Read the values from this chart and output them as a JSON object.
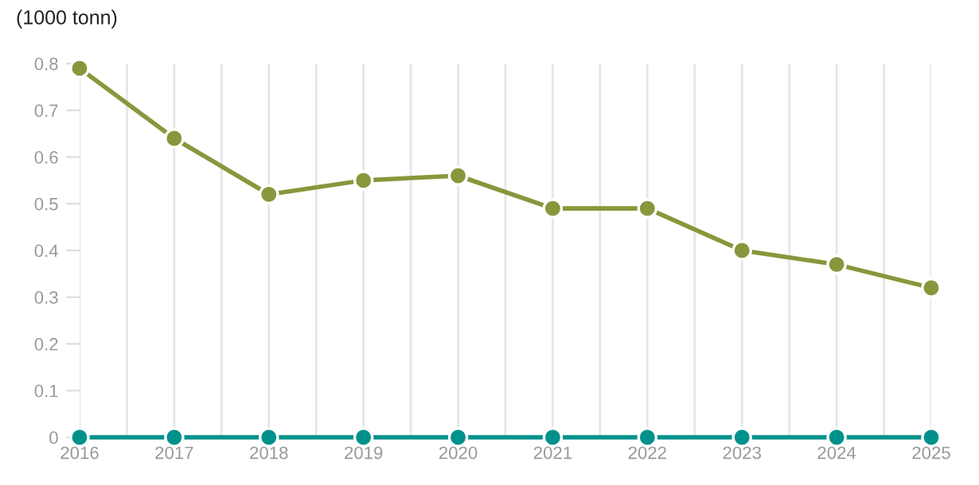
{
  "chart_data": {
    "type": "line",
    "ylabel": "(1000 tonn)",
    "x": [
      2016,
      2017,
      2018,
      2019,
      2020,
      2021,
      2022,
      2023,
      2024,
      2025
    ],
    "series": [
      {
        "color": "#8a963c",
        "values": [
          0.79,
          0.64,
          0.52,
          0.55,
          0.56,
          0.49,
          0.49,
          0.4,
          0.37,
          0.32
        ]
      },
      {
        "color": "#00918c",
        "values": [
          0,
          0,
          0,
          0,
          0,
          0,
          0,
          0,
          0,
          0
        ]
      }
    ],
    "xlim": [
      2016,
      2025
    ],
    "xticks": [
      2016,
      {
        "value": 2016.5,
        "label": null
      },
      2017,
      {
        "value": 2017.5,
        "label": null
      },
      2018,
      {
        "value": 2018.5,
        "label": null
      },
      2019,
      {
        "value": 2019.5,
        "label": null
      },
      2020,
      {
        "value": 2020.5,
        "label": null
      },
      2021,
      {
        "value": 2021.5,
        "label": null
      },
      2022,
      {
        "value": 2022.5,
        "label": null
      },
      2023,
      {
        "value": 2023.5,
        "label": null
      },
      2024,
      {
        "value": 2024.5,
        "label": null
      },
      2025
    ],
    "ylim": [
      0,
      0.8
    ],
    "yticks": [
      0,
      0.1,
      0.2,
      0.3,
      0.4,
      0.5,
      0.6,
      0.7,
      0.8
    ],
    "grid": "x",
    "marker": "circle",
    "line_style": "solid"
  }
}
